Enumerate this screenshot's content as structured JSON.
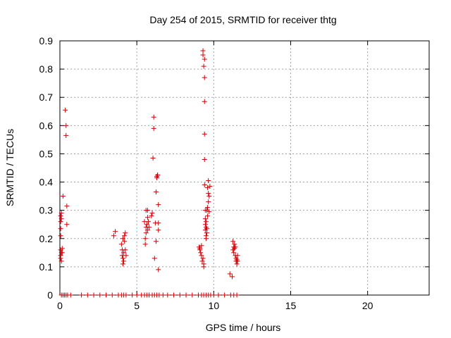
{
  "chart_data": {
    "type": "scatter",
    "title": "Day 254 of 2015, SRMTID for receiver thtg",
    "xlabel": "GPS time / hours",
    "ylabel": "SRMTID / TECUs",
    "xlim": [
      0,
      24
    ],
    "ylim": [
      0,
      0.9
    ],
    "xticks": [
      0,
      5,
      10,
      15,
      20
    ],
    "yticks": [
      0,
      0.1,
      0.2,
      0.3,
      0.4,
      0.5,
      0.6,
      0.7,
      0.8,
      0.9
    ],
    "xtick_labels": [
      "0",
      "5",
      "10",
      "15",
      "20"
    ],
    "ytick_labels": [
      "0",
      "0.1",
      "0.2",
      "0.3",
      "0.4",
      "0.5",
      "0.6",
      "0.7",
      "0.8",
      "0.9"
    ],
    "grid": true,
    "marker": "+",
    "marker_color": "#cc0000",
    "series": [
      {
        "name": "SRMTID",
        "points": [
          [
            0.05,
            0.28
          ],
          [
            0.05,
            0.26
          ],
          [
            0.05,
            0.235
          ],
          [
            0.05,
            0.21
          ],
          [
            0.05,
            0.16
          ],
          [
            0.05,
            0.14
          ],
          [
            0.05,
            0.13
          ],
          [
            0.1,
            0.12
          ],
          [
            0.1,
            0.15
          ],
          [
            0.1,
            0.27
          ],
          [
            0.1,
            0.29
          ],
          [
            0.15,
            0.165
          ],
          [
            0.15,
            0.15
          ],
          [
            0.2,
            0.35
          ],
          [
            0.35,
            0.655
          ],
          [
            0.4,
            0.6
          ],
          [
            0.4,
            0.565
          ],
          [
            0.45,
            0.315
          ],
          [
            0.45,
            0.25
          ],
          [
            3.5,
            0.21
          ],
          [
            3.6,
            0.225
          ],
          [
            4.0,
            0.18
          ],
          [
            4.05,
            0.16
          ],
          [
            4.05,
            0.14
          ],
          [
            4.1,
            0.2
          ],
          [
            4.1,
            0.13
          ],
          [
            4.1,
            0.11
          ],
          [
            4.15,
            0.15
          ],
          [
            4.15,
            0.12
          ],
          [
            4.2,
            0.21
          ],
          [
            4.2,
            0.19
          ],
          [
            4.25,
            0.22
          ],
          [
            4.25,
            0.16
          ],
          [
            4.3,
            0.14
          ],
          [
            5.5,
            0.26
          ],
          [
            5.55,
            0.2
          ],
          [
            5.55,
            0.18
          ],
          [
            5.6,
            0.24
          ],
          [
            5.6,
            0.22
          ],
          [
            5.6,
            0.3
          ],
          [
            5.65,
            0.25
          ],
          [
            5.7,
            0.275
          ],
          [
            5.7,
            0.3
          ],
          [
            5.7,
            0.23
          ],
          [
            5.75,
            0.26
          ],
          [
            5.8,
            0.24
          ],
          [
            5.95,
            0.28
          ],
          [
            6.0,
            0.29
          ],
          [
            6.05,
            0.485
          ],
          [
            6.1,
            0.63
          ],
          [
            6.1,
            0.59
          ],
          [
            6.15,
            0.13
          ],
          [
            6.2,
            0.255
          ],
          [
            6.25,
            0.19
          ],
          [
            6.25,
            0.365
          ],
          [
            6.3,
            0.415
          ],
          [
            6.3,
            0.42
          ],
          [
            6.35,
            0.425
          ],
          [
            6.35,
            0.425
          ],
          [
            6.4,
            0.32
          ],
          [
            6.4,
            0.255
          ],
          [
            6.4,
            0.23
          ],
          [
            6.4,
            0.09
          ],
          [
            9.05,
            0.17
          ],
          [
            9.1,
            0.16
          ],
          [
            9.1,
            0.165
          ],
          [
            9.15,
            0.15
          ],
          [
            9.2,
            0.14
          ],
          [
            9.2,
            0.175
          ],
          [
            9.25,
            0.12
          ],
          [
            9.3,
            0.13
          ],
          [
            9.3,
            0.85
          ],
          [
            9.3,
            0.865
          ],
          [
            9.35,
            0.81
          ],
          [
            9.35,
            0.11
          ],
          [
            9.35,
            0.1
          ],
          [
            9.4,
            0.835
          ],
          [
            9.4,
            0.77
          ],
          [
            9.4,
            0.685
          ],
          [
            9.4,
            0.57
          ],
          [
            9.4,
            0.48
          ],
          [
            9.4,
            0.39
          ],
          [
            9.45,
            0.3
          ],
          [
            9.45,
            0.27
          ],
          [
            9.45,
            0.25
          ],
          [
            9.45,
            0.23
          ],
          [
            9.5,
            0.21
          ],
          [
            9.5,
            0.2
          ],
          [
            9.5,
            0.24
          ],
          [
            9.5,
            0.26
          ],
          [
            9.55,
            0.22
          ],
          [
            9.55,
            0.235
          ],
          [
            9.55,
            0.3
          ],
          [
            9.6,
            0.38
          ],
          [
            9.6,
            0.31
          ],
          [
            9.6,
            0.28
          ],
          [
            9.65,
            0.405
          ],
          [
            9.65,
            0.36
          ],
          [
            9.65,
            0.33
          ],
          [
            9.7,
            0.35
          ],
          [
            9.7,
            0.295
          ],
          [
            9.75,
            0.385
          ],
          [
            11.05,
            0.075
          ],
          [
            11.2,
            0.065
          ],
          [
            11.25,
            0.19
          ],
          [
            11.25,
            0.16
          ],
          [
            11.3,
            0.17
          ],
          [
            11.3,
            0.15
          ],
          [
            11.35,
            0.165
          ],
          [
            11.35,
            0.18
          ],
          [
            11.4,
            0.14
          ],
          [
            11.4,
            0.17
          ],
          [
            11.45,
            0.12
          ],
          [
            11.45,
            0.13
          ],
          [
            11.5,
            0.125
          ],
          [
            11.5,
            0.11
          ],
          [
            11.55,
            0.14
          ],
          [
            11.55,
            0.12
          ],
          [
            0.1,
            0.0
          ],
          [
            0.2,
            0.0
          ],
          [
            0.3,
            0.0
          ],
          [
            0.4,
            0.0
          ],
          [
            0.5,
            0.0
          ],
          [
            0.7,
            0.0
          ],
          [
            1.4,
            0.0
          ],
          [
            1.8,
            0.0
          ],
          [
            2.2,
            0.0
          ],
          [
            2.6,
            0.0
          ],
          [
            3.0,
            0.0
          ],
          [
            3.4,
            0.0
          ],
          [
            3.8,
            0.0
          ],
          [
            4.0,
            0.0
          ],
          [
            4.15,
            0.0
          ],
          [
            4.3,
            0.0
          ],
          [
            4.7,
            0.0
          ],
          [
            5.0,
            0.0
          ],
          [
            5.3,
            0.0
          ],
          [
            5.5,
            0.0
          ],
          [
            5.65,
            0.0
          ],
          [
            5.8,
            0.0
          ],
          [
            6.0,
            0.0
          ],
          [
            6.15,
            0.0
          ],
          [
            6.3,
            0.0
          ],
          [
            6.45,
            0.0
          ],
          [
            6.7,
            0.0
          ],
          [
            7.0,
            0.0
          ],
          [
            7.4,
            0.0
          ],
          [
            7.8,
            0.0
          ],
          [
            8.2,
            0.0
          ],
          [
            8.6,
            0.0
          ],
          [
            9.0,
            0.0
          ],
          [
            9.2,
            0.0
          ],
          [
            9.35,
            0.0
          ],
          [
            9.5,
            0.0
          ],
          [
            9.65,
            0.0
          ],
          [
            9.8,
            0.0
          ],
          [
            10.0,
            0.0
          ],
          [
            10.3,
            0.0
          ],
          [
            10.7,
            0.0
          ],
          [
            11.1,
            0.0
          ],
          [
            11.3,
            0.0
          ],
          [
            11.5,
            0.0
          ]
        ]
      }
    ]
  }
}
